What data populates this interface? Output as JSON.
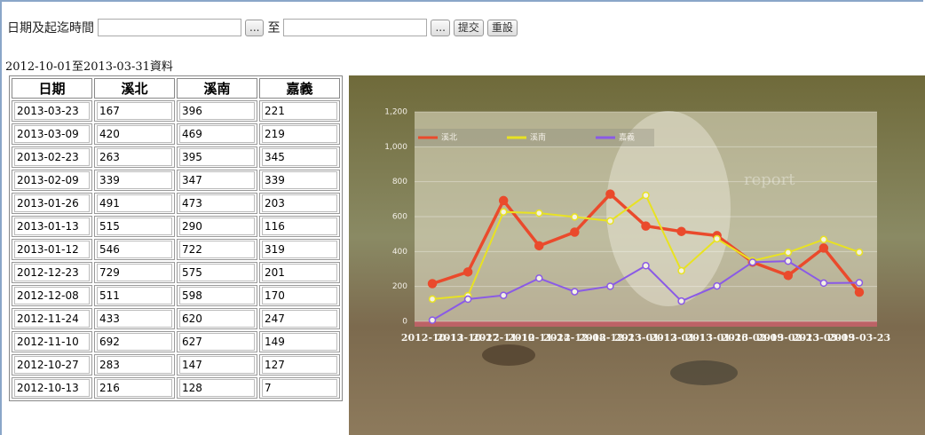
{
  "form": {
    "label": "日期及起迄時間",
    "picker": "...",
    "to": "至",
    "submit": "提交",
    "reset": "重設"
  },
  "caption": "2012-10-01至2013-03-31資料",
  "table": {
    "header": [
      "日期",
      "溪北",
      "溪南",
      "嘉義"
    ],
    "rows": [
      [
        "2013-03-23",
        "167",
        "396",
        "221"
      ],
      [
        "2013-03-09",
        "420",
        "469",
        "219"
      ],
      [
        "2013-02-23",
        "263",
        "395",
        "345"
      ],
      [
        "2013-02-09",
        "339",
        "347",
        "339"
      ],
      [
        "2013-01-26",
        "491",
        "473",
        "203"
      ],
      [
        "2013-01-13",
        "515",
        "290",
        "116"
      ],
      [
        "2013-01-12",
        "546",
        "722",
        "319"
      ],
      [
        "2012-12-23",
        "729",
        "575",
        "201"
      ],
      [
        "2012-12-08",
        "511",
        "598",
        "170"
      ],
      [
        "2012-11-24",
        "433",
        "620",
        "247"
      ],
      [
        "2012-11-10",
        "692",
        "627",
        "149"
      ],
      [
        "2012-10-27",
        "283",
        "147",
        "127"
      ],
      [
        "2012-10-13",
        "216",
        "128",
        "7"
      ]
    ]
  },
  "chart_data": {
    "type": "line",
    "watermark": "report",
    "categories": [
      "2012-10-13",
      "2012-10-27",
      "2012-11-10",
      "2012-11-24",
      "2012-12-08",
      "2012-12-23",
      "2013-01-12",
      "2013-01-13",
      "2013-01-26",
      "2013-02-09",
      "2013-02-23",
      "2013-03-09",
      "2013-03-23"
    ],
    "series": [
      {
        "name": "溪北",
        "color": "#ea4a2c",
        "values": [
          216,
          283,
          692,
          433,
          511,
          729,
          546,
          515,
          491,
          339,
          263,
          420,
          167
        ]
      },
      {
        "name": "溪南",
        "color": "#e8e222",
        "values": [
          128,
          147,
          627,
          620,
          598,
          575,
          722,
          290,
          473,
          347,
          395,
          469,
          396
        ]
      },
      {
        "name": "嘉義",
        "color": "#8a5ae6",
        "values": [
          7,
          127,
          149,
          247,
          170,
          201,
          319,
          116,
          203,
          339,
          345,
          219,
          221
        ]
      }
    ],
    "ylim": [
      0,
      1200
    ],
    "yticks": [
      0,
      200,
      400,
      600,
      800,
      {
        "value": 1000,
        "label": "1,000"
      },
      {
        "value": 1200,
        "label": "1,200"
      }
    ],
    "grid": true,
    "legend": "top-left"
  }
}
